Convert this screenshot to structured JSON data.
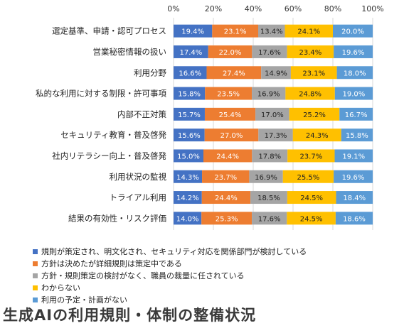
{
  "chart_data": {
    "type": "bar",
    "orientation": "horizontal",
    "stacked": true,
    "percent_stacked": true,
    "title": "生成AIの利用規則・体制の整備状況",
    "xlim": [
      0,
      100
    ],
    "x_ticks": [
      "0%",
      "20%",
      "40%",
      "60%",
      "80%",
      "100%"
    ],
    "categories": [
      "選定基準、申請・認可プロセス",
      "営業秘密情報の扱い",
      "利用分野",
      "私的な利用に対する制限・許可事項",
      "内部不正対策",
      "セキュリティ教育・普及啓発",
      "社内リテラシー向上・普及啓発",
      "利用状況の監視",
      "トライアル利用",
      "結果の有効性・リスク評価"
    ],
    "series": [
      {
        "name": "規則が策定され、明文化され、セキュリティ対応を関係部門が検討している",
        "color": "#4472c4",
        "values": [
          19.4,
          17.4,
          16.6,
          15.8,
          15.7,
          15.6,
          15.0,
          14.3,
          14.2,
          14.0
        ]
      },
      {
        "name": "方針は決めたが詳細規則は策定中である",
        "color": "#ed7d31",
        "values": [
          23.1,
          22.0,
          27.4,
          23.5,
          25.4,
          27.0,
          24.4,
          23.7,
          24.4,
          25.3
        ]
      },
      {
        "name": "方針・規則策定の検討がなく、職員の裁量に任されている",
        "color": "#a5a5a5",
        "values": [
          13.4,
          17.6,
          14.9,
          16.9,
          17.0,
          17.3,
          17.8,
          16.9,
          18.5,
          17.6
        ]
      },
      {
        "name": "わからない",
        "color": "#ffc000",
        "values": [
          24.1,
          23.4,
          23.1,
          24.8,
          25.2,
          24.3,
          23.7,
          25.5,
          24.5,
          24.5
        ]
      },
      {
        "name": "利用の予定・計画がない",
        "color": "#5b9bd5",
        "values": [
          20.0,
          19.6,
          18.0,
          19.0,
          16.7,
          15.8,
          19.1,
          19.6,
          18.4,
          18.6
        ]
      }
    ],
    "labels": [
      [
        "19.4%",
        "17.4%",
        "16.6%",
        "15.8%",
        "15.7%",
        "15.6%",
        "15.0%",
        "14.3%",
        "14.2%",
        "14.0%"
      ],
      [
        "23.1%",
        "22.0%",
        "27.4%",
        "23.5%",
        "25.4%",
        "27.0%",
        "24.4%",
        "23.7%",
        "24.4%",
        "25.3%"
      ],
      [
        "13.4%",
        "17.6%",
        "14.9%",
        "16.9%",
        "17.0%",
        "17.3%",
        "17.8%",
        "16.9%",
        "18.5%",
        "17.6%"
      ],
      [
        "24.1%",
        "23.4%",
        "23.1%",
        "24.8%",
        "25.2%",
        "24.3%",
        "23.7%",
        "25.5%",
        "24.5%",
        "24.5%"
      ],
      [
        "20.0%",
        "19.6%",
        "18.0%",
        "19.0%",
        "16.7%",
        "15.8%",
        "19.1%",
        "19.6%",
        "18.4%",
        "18.6%"
      ]
    ],
    "grid": true,
    "legend_position": "bottom"
  }
}
